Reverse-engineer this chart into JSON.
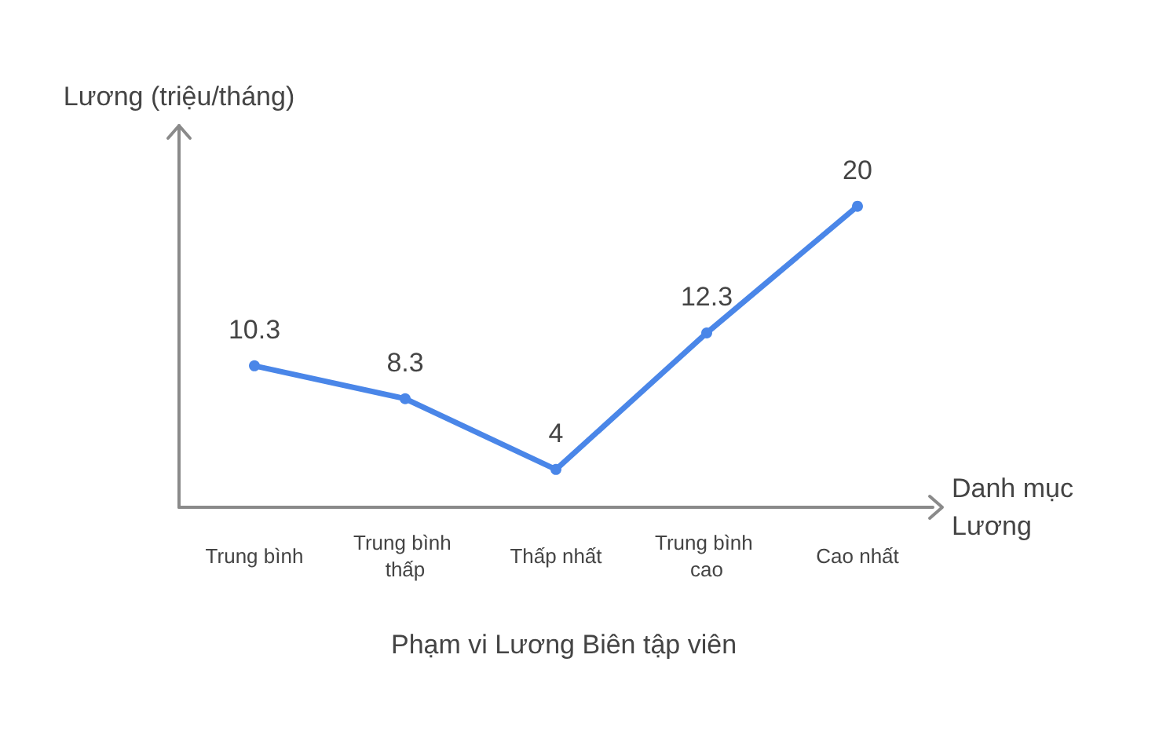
{
  "chart_data": {
    "type": "line",
    "title": "Phạm vi Lương Biên tập viên",
    "xlabel": "Danh mục Lương",
    "ylabel": "Lương (triệu/tháng)",
    "categories": [
      "Trung bình",
      "Trung bình thấp",
      "Thấp nhất",
      "Trung bình cao",
      "Cao nhất"
    ],
    "series": [
      {
        "color": "#4a86e8",
        "values": [
          10.3,
          8.3,
          4,
          12.3,
          20
        ]
      }
    ],
    "ylim": [
      1.7,
      24.9
    ],
    "tick_labels": "x",
    "grid": false,
    "marker": "circle",
    "line_style": "solid",
    "data_labels": true
  }
}
